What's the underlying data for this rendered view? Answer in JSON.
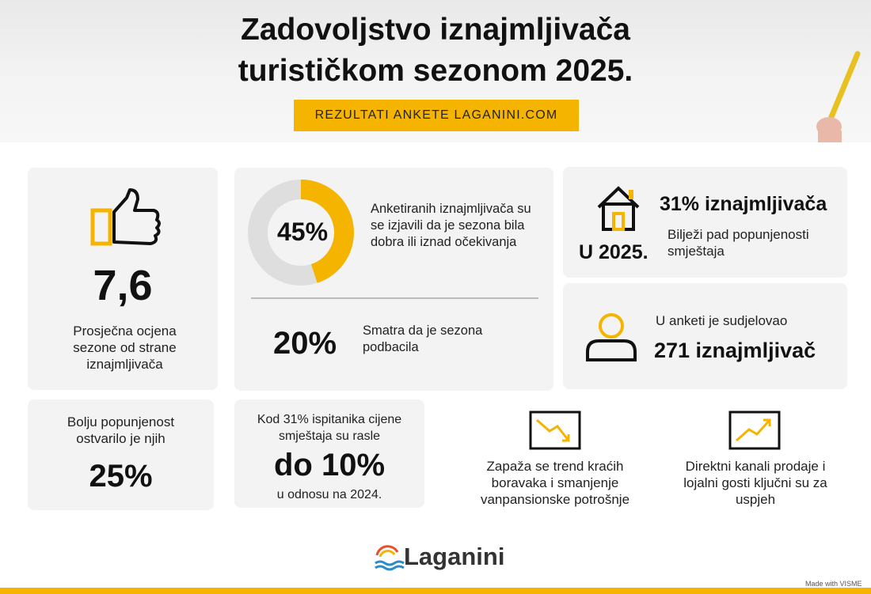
{
  "header": {
    "title_line1": "Zadovoljstvo iznajmljivača",
    "title_line2": "turističkom sezonom 2025.",
    "badge": "REZULTATI ANKETE LAGANINI.COM"
  },
  "rating": {
    "value": "7,6",
    "text": "Prosječna ocjena sezone od strane iznajmljivača"
  },
  "season": {
    "donut": {
      "value": 45,
      "label": "45%"
    },
    "donut_text": "Anketiranih iznajmljivača su se izjavili da je sezona bila dobra ili iznad očekivanja",
    "failed_value": "20%",
    "failed_text": "Smatra da je sezona podbacila"
  },
  "occupancy_drop": {
    "value": "31% iznajmljivača",
    "year": "U 2025.",
    "text": "Bilježi pad popunjenosti smještaja"
  },
  "participants": {
    "text": "U anketi je sudjelovao",
    "value": "271 iznajmljivač"
  },
  "better_occupancy": {
    "text": "Bolju popunjenost ostvarilo je njih",
    "value": "25%"
  },
  "prices": {
    "text": "Kod 31% ispitanika cijene smještaja su rasle",
    "value": "do 10%",
    "note": "u odnosu na 2024."
  },
  "trends": [
    {
      "text": "Zapaža se trend kraćih boravaka i smanjenje vanpansionske potrošnje"
    },
    {
      "text": "Direktni kanali prodaje i lojalni gosti ključni su za uspjeh"
    }
  ],
  "logo": "Laganini",
  "footer": "Made with VISME"
}
